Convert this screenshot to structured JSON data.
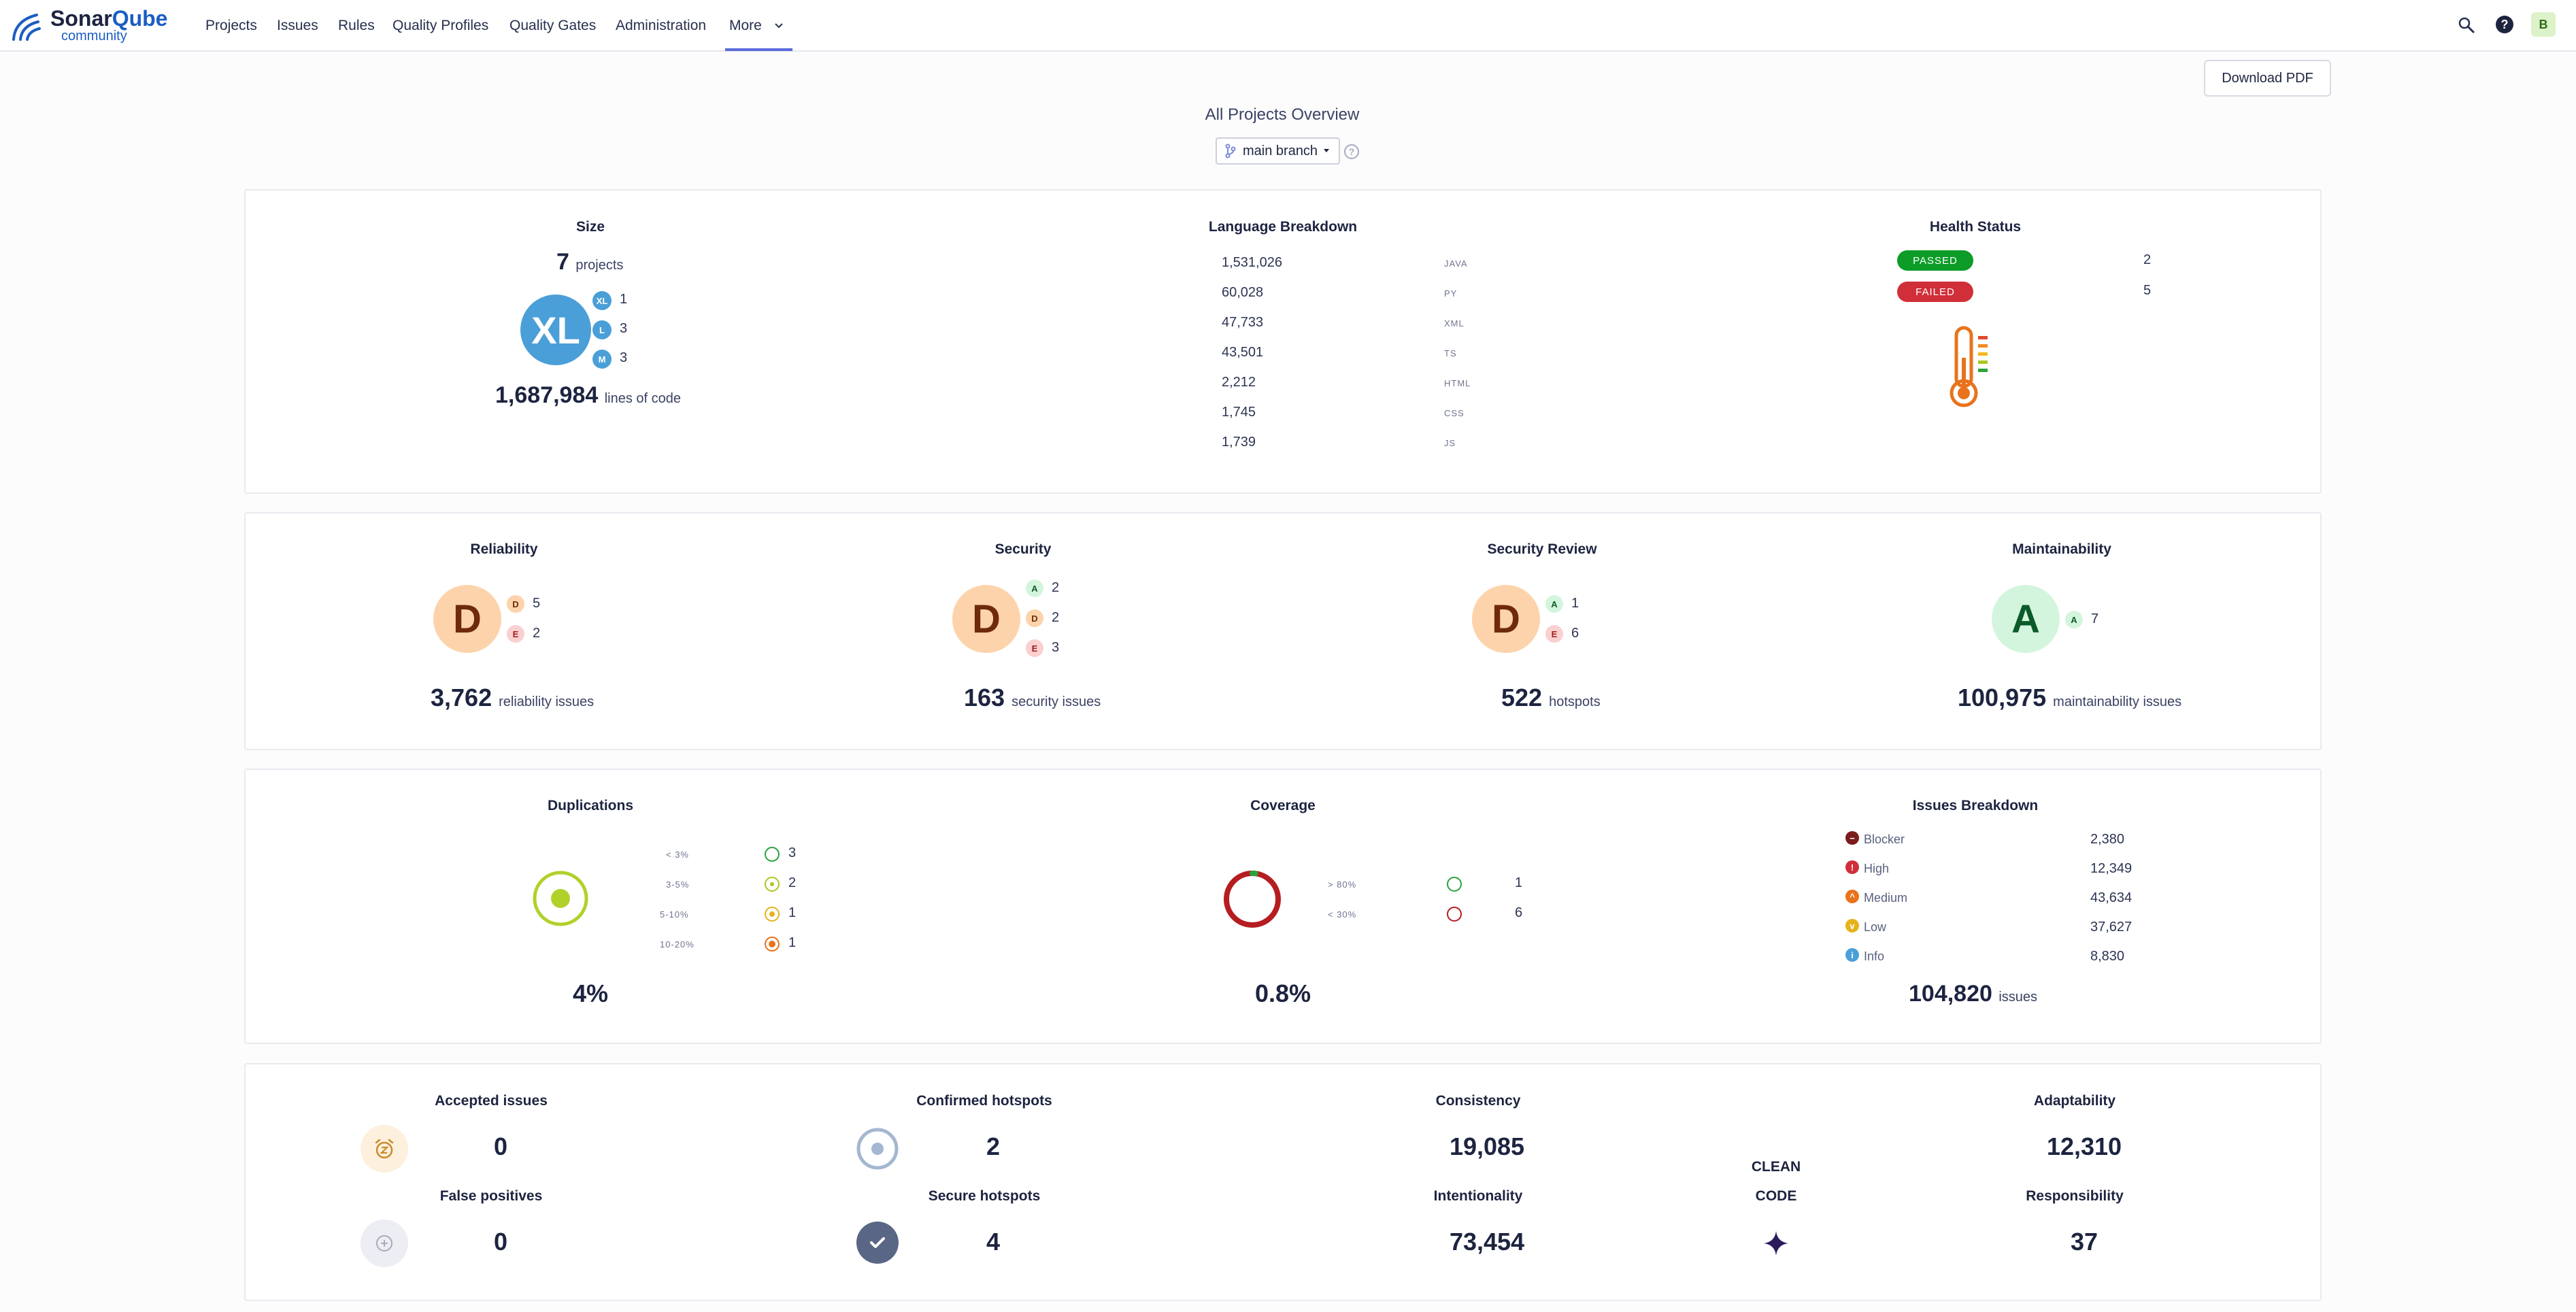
{
  "nav": {
    "logo": {
      "sonar": "Sonar",
      "qube": "Qube",
      "edition": "community"
    },
    "items": [
      {
        "label": "Projects"
      },
      {
        "label": "Issues"
      },
      {
        "label": "Rules"
      },
      {
        "label": "Quality Profiles"
      },
      {
        "label": "Quality Gates"
      },
      {
        "label": "Administration"
      },
      {
        "label": "More"
      }
    ],
    "user_initial": "B"
  },
  "header": {
    "download_label": "Download PDF",
    "title": "All Projects Overview",
    "branch_label": "main branch"
  },
  "size": {
    "title": "Size",
    "projects_count": "7",
    "projects_label": "projects",
    "big_size": "XL",
    "breakdown": [
      {
        "size": "XL",
        "count": "1"
      },
      {
        "size": "L",
        "count": "3"
      },
      {
        "size": "M",
        "count": "3"
      }
    ],
    "lines_count": "1,687,984",
    "lines_label": "lines of code"
  },
  "languages": {
    "title": "Language Breakdown",
    "items": [
      {
        "count": "1,531,026",
        "lang": "JAVA"
      },
      {
        "count": "60,028",
        "lang": "PY"
      },
      {
        "count": "47,733",
        "lang": "XML"
      },
      {
        "count": "43,501",
        "lang": "TS"
      },
      {
        "count": "2,212",
        "lang": "HTML"
      },
      {
        "count": "1,745",
        "lang": "CSS"
      },
      {
        "count": "1,739",
        "lang": "JS"
      }
    ]
  },
  "health": {
    "title": "Health Status",
    "passed_label": "PASSED",
    "passed_count": "2",
    "failed_label": "FAILED",
    "failed_count": "5"
  },
  "reliability": {
    "title": "Reliability",
    "rating": "D",
    "breakdown": [
      {
        "r": "D",
        "count": "5"
      },
      {
        "r": "E",
        "count": "2"
      }
    ],
    "count": "3,762",
    "label": "reliability issues"
  },
  "security": {
    "title": "Security",
    "rating": "D",
    "breakdown": [
      {
        "r": "A",
        "count": "2"
      },
      {
        "r": "D",
        "count": "2"
      },
      {
        "r": "E",
        "count": "3"
      }
    ],
    "count": "163",
    "label": "security issues"
  },
  "security_review": {
    "title": "Security Review",
    "rating": "D",
    "breakdown": [
      {
        "r": "A",
        "count": "1"
      },
      {
        "r": "E",
        "count": "6"
      }
    ],
    "count": "522",
    "label": "hotspots"
  },
  "maintainability": {
    "title": "Maintainability",
    "rating": "A",
    "breakdown": [
      {
        "r": "A",
        "count": "7"
      }
    ],
    "count": "100,975",
    "label": "maintainability issues"
  },
  "duplications": {
    "title": "Duplications",
    "ranges": [
      {
        "label": "< 3%",
        "count": "3"
      },
      {
        "label": "3-5%",
        "count": "2"
      },
      {
        "label": "5-10%",
        "count": "1"
      },
      {
        "label": "10-20%",
        "count": "1"
      }
    ],
    "value": "4%"
  },
  "coverage": {
    "title": "Coverage",
    "ranges": [
      {
        "label": "> 80%",
        "count": "1"
      },
      {
        "label": "< 30%",
        "count": "6"
      }
    ],
    "value": "0.8%",
    "fraction": 0.008
  },
  "issues_breakdown": {
    "title": "Issues Breakdown",
    "items": [
      {
        "label": "Blocker",
        "count": "2,380"
      },
      {
        "label": "High",
        "count": "12,349"
      },
      {
        "label": "Medium",
        "count": "43,634"
      },
      {
        "label": "Low",
        "count": "37,627"
      },
      {
        "label": "Info",
        "count": "8,830"
      }
    ],
    "total": "104,820",
    "total_label": "issues"
  },
  "bottom": {
    "accepted": {
      "title": "Accepted issues",
      "count": "0"
    },
    "false_positives": {
      "title": "False positives",
      "count": "0"
    },
    "confirmed_hotspots": {
      "title": "Confirmed hotspots",
      "count": "2"
    },
    "secure_hotspots": {
      "title": "Secure hotspots",
      "count": "4"
    },
    "consistency": {
      "title": "Consistency",
      "count": "19,085"
    },
    "intentionality": {
      "title": "Intentionality",
      "count": "73,454"
    },
    "clean_code": {
      "line1": "CLEAN",
      "line2": "CODE"
    },
    "adaptability": {
      "title": "Adaptability",
      "count": "12,310"
    },
    "responsibility": {
      "title": "Responsibility",
      "count": "37"
    }
  },
  "colors": {
    "rating_a_bg": "#d4f5dd",
    "rating_a_fg": "#0c5a2a",
    "rating_d_bg": "#fdd3ab",
    "rating_d_fg": "#6e2a09",
    "rating_e_bg": "#fbd0d0",
    "rating_e_fg": "#a01f1f",
    "xl_bg": "#4b9fd8",
    "passed": "#0c9c27",
    "failed": "#d02f3a"
  }
}
